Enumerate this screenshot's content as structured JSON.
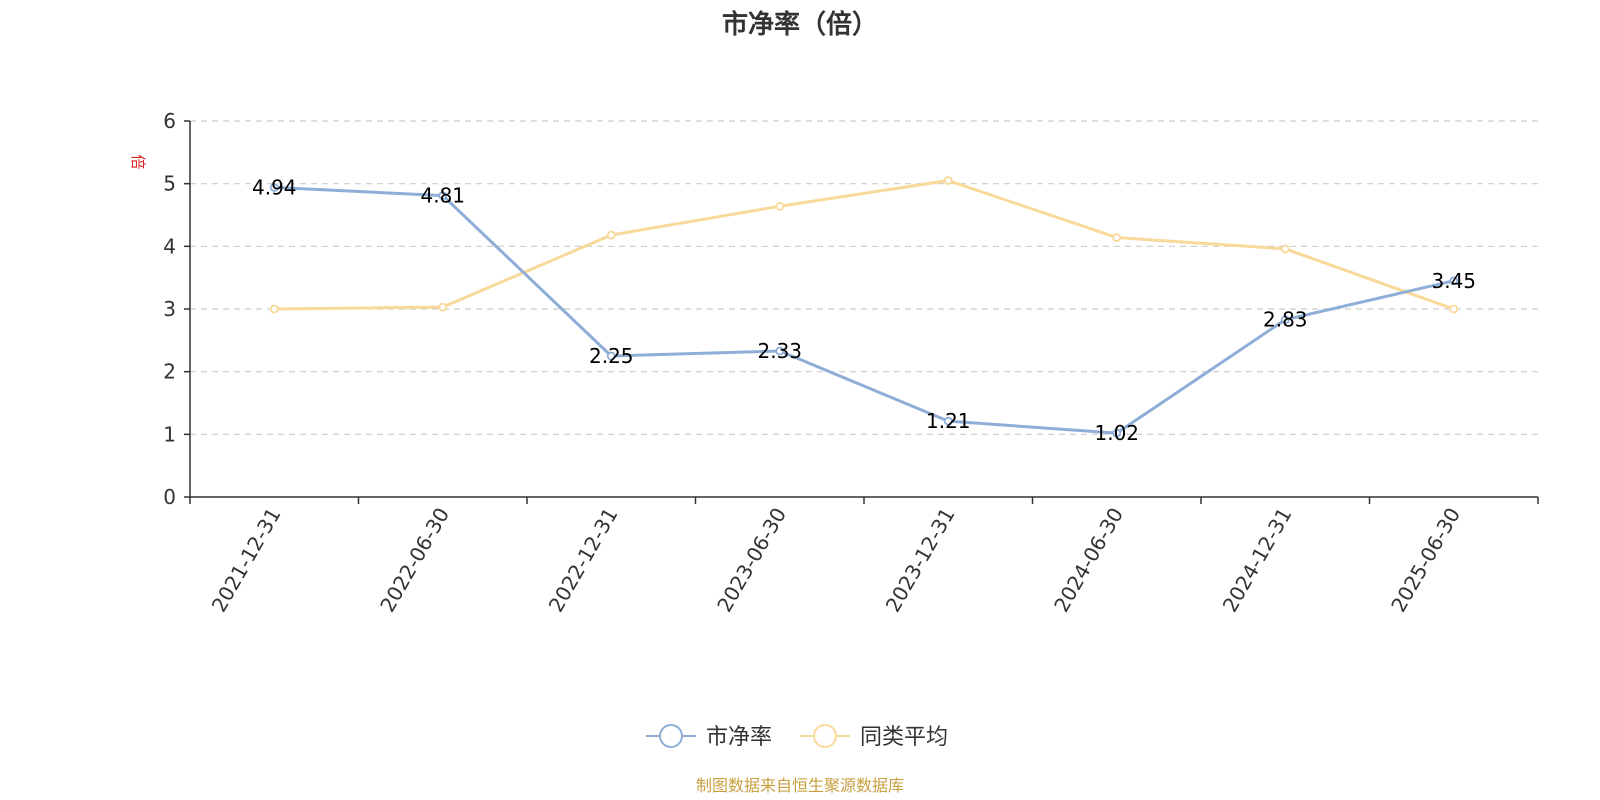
{
  "chart_data": {
    "type": "line",
    "title": "市净率（倍）",
    "ylabel": "倍",
    "xlabel": "",
    "categories": [
      "2021-12-31",
      "2022-06-30",
      "2022-12-31",
      "2023-06-30",
      "2023-12-31",
      "2024-06-30",
      "2024-12-31",
      "2025-06-30"
    ],
    "yticks": [
      "0",
      "1",
      "2",
      "3",
      "4",
      "5",
      "6"
    ],
    "ylim": [
      0,
      6
    ],
    "grid": true,
    "legend_position": "bottom-center",
    "series": [
      {
        "name": "市净率",
        "color": "#8eaed8",
        "values": [
          4.94,
          4.81,
          2.25,
          2.33,
          1.21,
          1.02,
          2.83,
          3.45
        ],
        "labels": [
          "4.94",
          "4.81",
          "2.25",
          "2.33",
          "1.21",
          "1.02",
          "2.83",
          "3.45"
        ]
      },
      {
        "name": "同类平均",
        "color": "#f9d99a",
        "values": [
          3.0,
          3.03,
          4.18,
          4.64,
          5.05,
          4.14,
          3.96,
          3.0
        ]
      }
    ],
    "unit_color": "#e02020"
  },
  "source_note": "制图数据来自恒生聚源数据库",
  "source_color": "#c8a040"
}
